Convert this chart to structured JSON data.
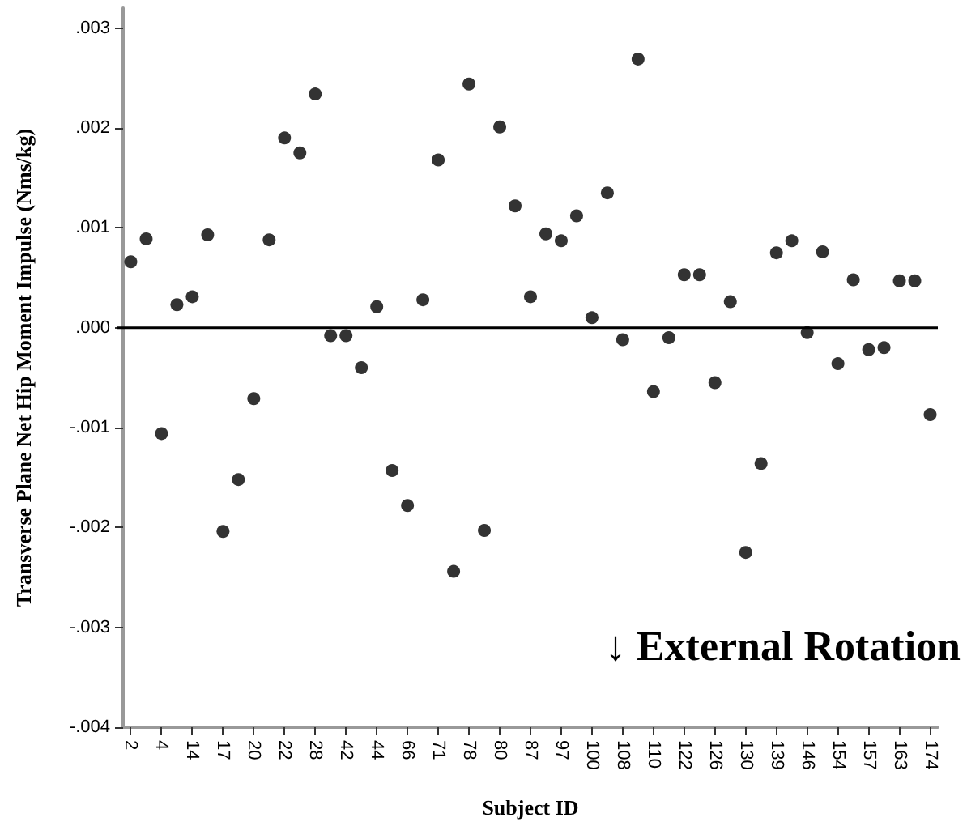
{
  "chart_data": {
    "type": "scatter",
    "xlabel": "Subject ID",
    "ylabel": "Transverse Plane Net Hip Moment Impulse (Nms/kg)",
    "annotations": [
      "↓ External Rotation"
    ],
    "categories": [
      "2",
      null,
      "4",
      null,
      "14",
      null,
      "17",
      null,
      "20",
      null,
      "22",
      null,
      "28",
      null,
      "42",
      null,
      "44",
      null,
      "66",
      null,
      "71",
      null,
      "78",
      null,
      "80",
      null,
      "87",
      null,
      "97",
      null,
      "100",
      null,
      "108",
      null,
      "110",
      null,
      "122",
      null,
      "126",
      null,
      "130",
      null,
      "139",
      null,
      "146",
      null,
      "154",
      null,
      "157",
      null,
      "163",
      null,
      "174"
    ],
    "series": [
      {
        "color": "#000000",
        "values": [
          0.00066,
          0.00089,
          -0.00106,
          0.00023,
          0.00031,
          0.00093,
          -0.00204,
          -0.00152,
          -0.00071,
          0.00088,
          0.0019,
          0.00175,
          0.00234,
          -8e-05,
          -8e-05,
          -0.0004,
          0.00021,
          -0.00143,
          -0.00178,
          0.00028,
          0.00168,
          -0.00244,
          0.00244,
          -0.00203,
          0.00201,
          0.00122,
          0.00031,
          0.00094,
          0.00087,
          0.00112,
          0.0001,
          0.00135,
          -0.00012,
          0.00269,
          -0.00064,
          -0.0001,
          0.00053,
          0.00053,
          -0.00055,
          0.00026,
          -0.00225,
          -0.00136,
          0.00075,
          0.00087,
          -5e-05,
          0.00076,
          -0.00036,
          0.00048,
          -0.00022,
          -0.0002,
          0.00047,
          0.00047,
          -0.00087
        ]
      }
    ],
    "ylim": [
      -0.004,
      0.0032
    ],
    "yticks": [
      {
        "value": -0.004,
        "label": "-.004"
      },
      {
        "value": -0.003,
        "label": "-.003"
      },
      {
        "value": -0.002,
        "label": "-.002"
      },
      {
        "value": -0.001,
        "label": "-.001"
      },
      {
        "value": 0,
        "label": ".000"
      },
      {
        "value": 0.001,
        "label": ".001"
      },
      {
        "value": 0.002,
        "label": ".002"
      },
      {
        "value": 0.003,
        "label": ".003"
      }
    ],
    "ref_lines": [
      {
        "axis": "y",
        "value": 0,
        "color": "#000000"
      }
    ],
    "grid": false,
    "marker": "circle"
  }
}
